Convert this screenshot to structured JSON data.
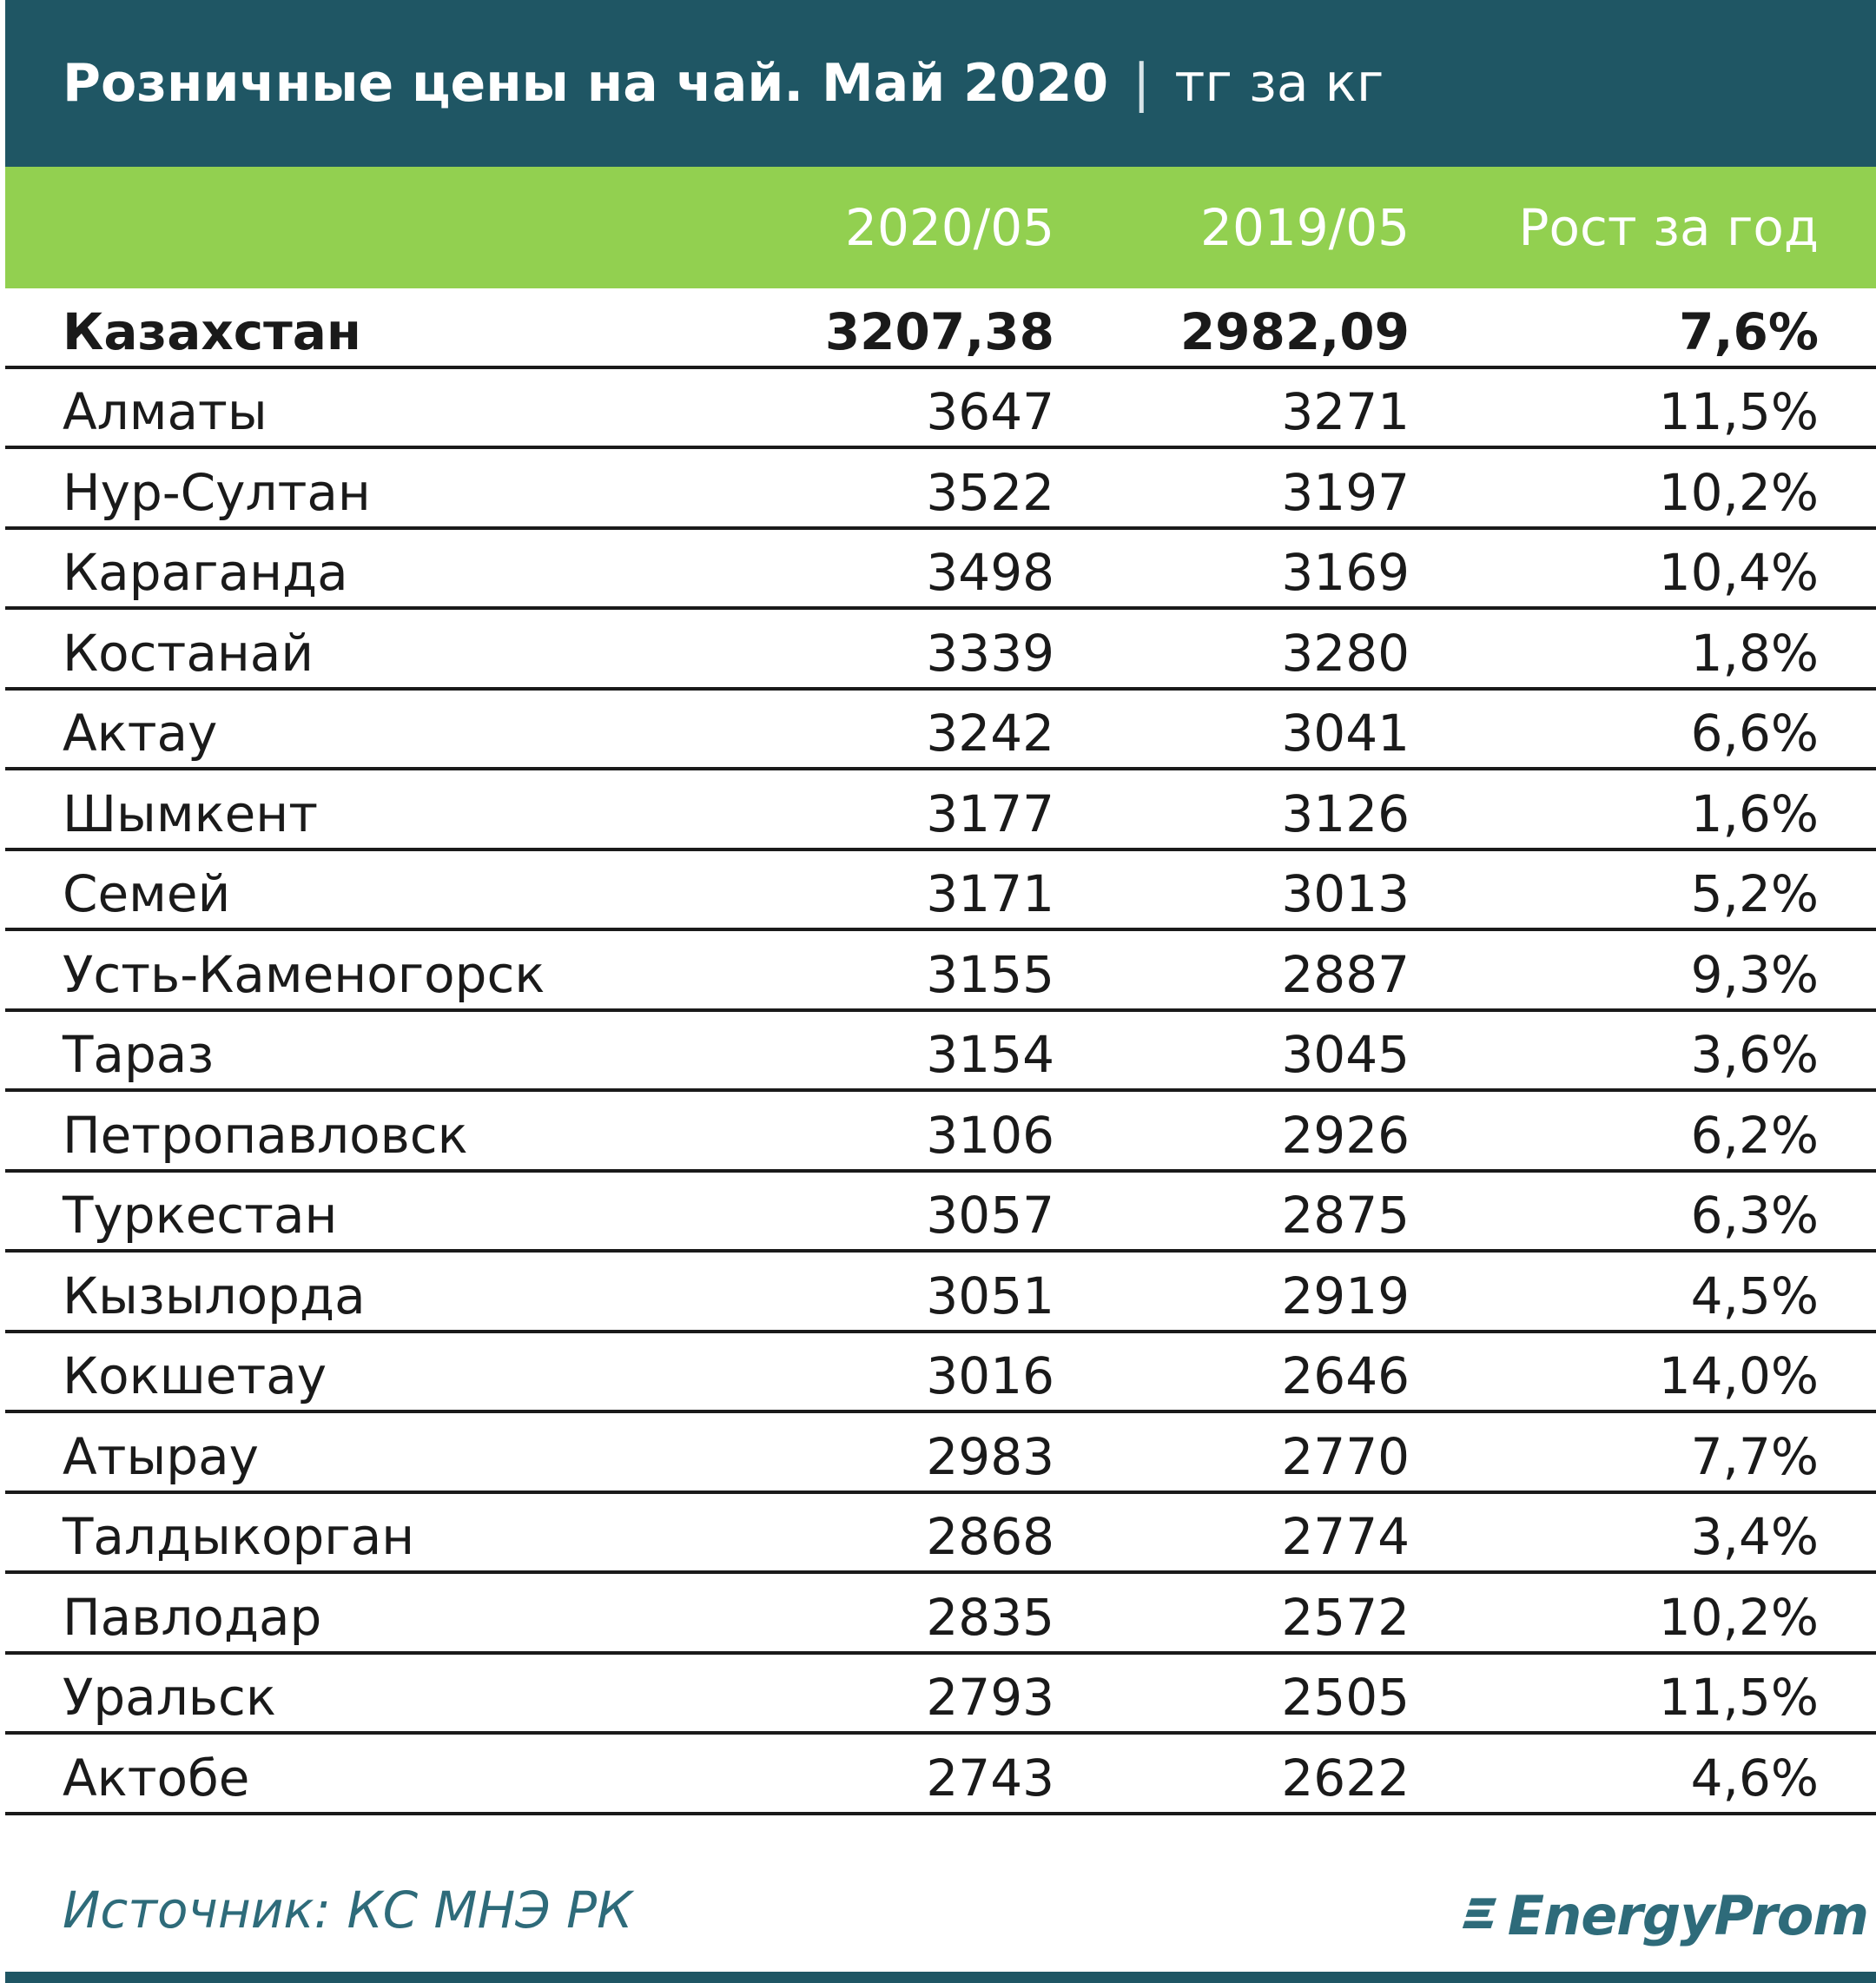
{
  "title": {
    "main": "Розничные цены на чай. Май 2020",
    "separator": "|",
    "unit": "тг за кг"
  },
  "header": {
    "col_2020": "2020/05",
    "col_2019": "2019/05",
    "col_growth": "Рост за год"
  },
  "rows": [
    {
      "name": "Казахстан",
      "v2020": "3207,38",
      "v2019": "2982,09",
      "growth": "7,6%"
    },
    {
      "name": "Алматы",
      "v2020": "3647",
      "v2019": "3271",
      "growth": "11,5%"
    },
    {
      "name": "Нур-Султан",
      "v2020": "3522",
      "v2019": "3197",
      "growth": "10,2%"
    },
    {
      "name": "Караганда",
      "v2020": "3498",
      "v2019": "3169",
      "growth": "10,4%"
    },
    {
      "name": "Костанай",
      "v2020": "3339",
      "v2019": "3280",
      "growth": "1,8%"
    },
    {
      "name": "Актау",
      "v2020": "3242",
      "v2019": "3041",
      "growth": "6,6%"
    },
    {
      "name": "Шымкент",
      "v2020": "3177",
      "v2019": "3126",
      "growth": "1,6%"
    },
    {
      "name": "Семей",
      "v2020": "3171",
      "v2019": "3013",
      "growth": "5,2%"
    },
    {
      "name": "Усть-Каменогорск",
      "v2020": "3155",
      "v2019": "2887",
      "growth": "9,3%"
    },
    {
      "name": "Тараз",
      "v2020": "3154",
      "v2019": "3045",
      "growth": "3,6%"
    },
    {
      "name": "Петропавловск",
      "v2020": "3106",
      "v2019": "2926",
      "growth": "6,2%"
    },
    {
      "name": "Туркестан",
      "v2020": "3057",
      "v2019": "2875",
      "growth": "6,3%"
    },
    {
      "name": "Кызылорда",
      "v2020": "3051",
      "v2019": "2919",
      "growth": "4,5%"
    },
    {
      "name": "Кокшетау",
      "v2020": "3016",
      "v2019": "2646",
      "growth": "14,0%"
    },
    {
      "name": "Атырау",
      "v2020": "2983",
      "v2019": "2770",
      "growth": "7,7%"
    },
    {
      "name": "Талдыкорган",
      "v2020": "2868",
      "v2019": "2774",
      "growth": "3,4%"
    },
    {
      "name": "Павлодар",
      "v2020": "2835",
      "v2019": "2572",
      "growth": "10,2%"
    },
    {
      "name": "Уральск",
      "v2020": "2793",
      "v2019": "2505",
      "growth": "11,5%"
    },
    {
      "name": "Актобе",
      "v2020": "2743",
      "v2019": "2622",
      "growth": "4,6%"
    }
  ],
  "footer": {
    "source": "Источник: КС МНЭ РК",
    "logo_text": "EnergyProm",
    "logo_icon": "energyprom-logo-icon"
  },
  "colors": {
    "title_bg": "#1f5664",
    "header_bg": "#92d050",
    "brand": "#2e6b7a"
  }
}
